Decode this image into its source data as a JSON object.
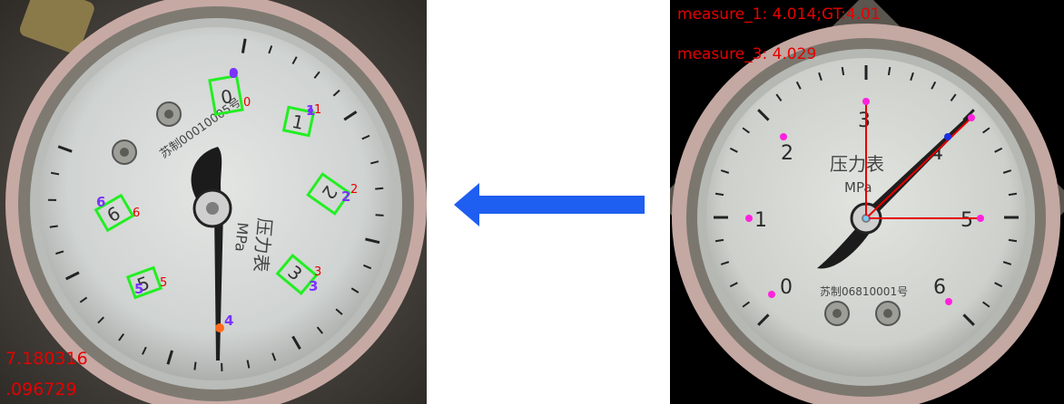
{
  "left": {
    "value_line1": "7.180316",
    "value_line2": ".096729",
    "gauge_text": {
      "unit": "MPa",
      "name": "压力表",
      "serial": "苏制00010005号"
    },
    "digit_boxes": [
      {
        "digit": "0",
        "index": "0"
      },
      {
        "digit": "1",
        "index": "1"
      },
      {
        "digit": "2",
        "index": "2"
      },
      {
        "digit": "3",
        "index": "3"
      },
      {
        "digit": "5",
        "index": "5"
      },
      {
        "digit": "6",
        "index": "6"
      }
    ],
    "keypoints": [
      "0",
      "1",
      "2",
      "3",
      "4",
      "5",
      "6"
    ]
  },
  "right": {
    "measure_1": "measure_1: 4.014;GT:4.01",
    "measure_3": "measure_3: 4.029",
    "gauge_text": {
      "name": "压力表",
      "unit": "MPa",
      "serial": "苏制06810001号"
    },
    "scale_labels": [
      "0",
      "1",
      "2",
      "3",
      "4",
      "5",
      "6"
    ]
  },
  "colors": {
    "annotation_red": "#e60000",
    "box_green": "#22ee22",
    "keypoint_purple": "#7a33ff",
    "keypoint_magenta": "#ff22dd",
    "arrow_blue": "#1e5ef0",
    "needle_orange": "#ff6a1a"
  }
}
